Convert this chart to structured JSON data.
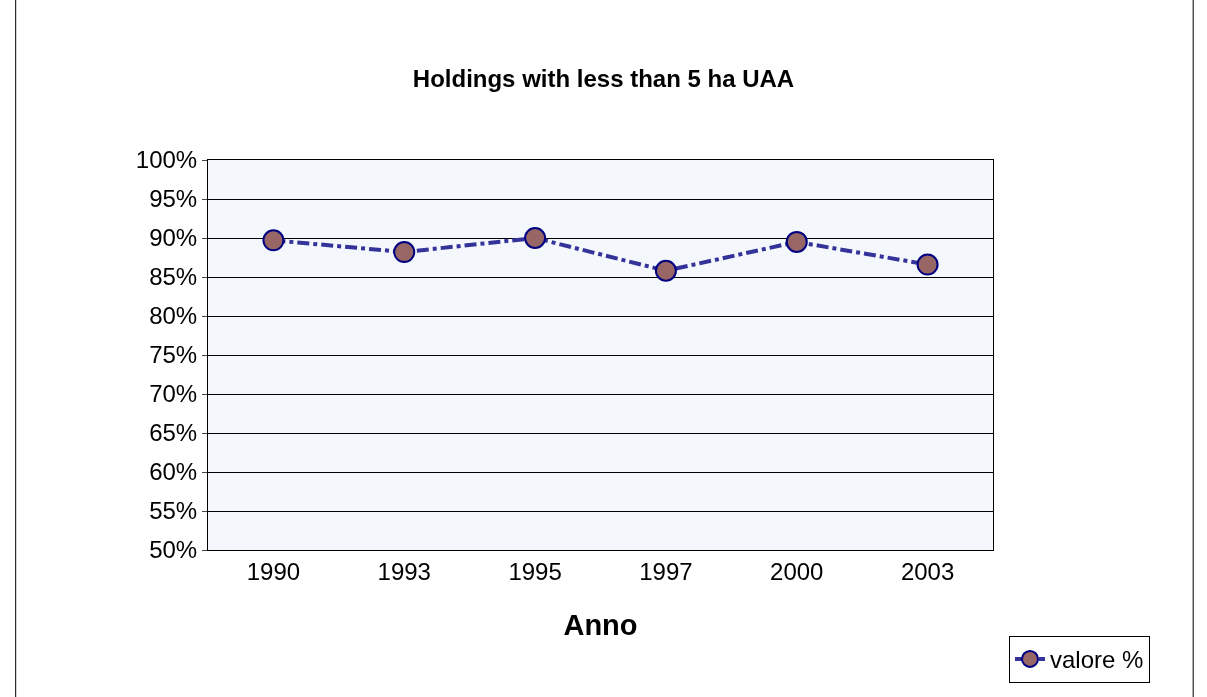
{
  "chart_data": {
    "type": "line",
    "title": "Holdings with less than 5 ha UAA",
    "xlabel": "Anno",
    "categories": [
      "1990",
      "1993",
      "1995",
      "1997",
      "2000",
      "2003"
    ],
    "series": [
      {
        "name": "valore %",
        "color": "#333399",
        "colors": [
          "#996666",
          "#996666",
          "#996666",
          "#996666",
          "#996666",
          "#996666"
        ],
        "values": [
          89.7,
          88.2,
          90.0,
          85.8,
          89.5,
          86.6
        ]
      }
    ],
    "ylim": [
      50,
      100
    ],
    "yticks": [
      {
        "value": 50,
        "label": "50%"
      },
      {
        "value": 55,
        "label": "55%"
      },
      {
        "value": 60,
        "label": "60%"
      },
      {
        "value": 65,
        "label": "65%"
      },
      {
        "value": 70,
        "label": "70%"
      },
      {
        "value": 75,
        "label": "75%"
      },
      {
        "value": 80,
        "label": "80%"
      },
      {
        "value": 85,
        "label": "85%"
      },
      {
        "value": 90,
        "label": "90%"
      },
      {
        "value": 95,
        "label": "95%"
      },
      {
        "value": 100,
        "label": "100%"
      }
    ],
    "grid": "y",
    "legend": "bottom right",
    "marker": "circle",
    "line_style": "dashed"
  }
}
